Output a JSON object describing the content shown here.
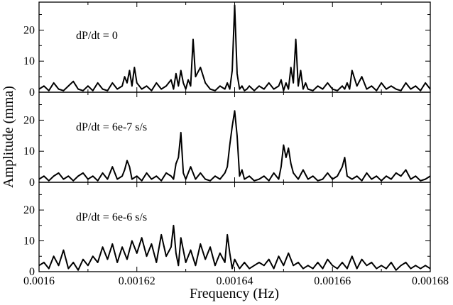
{
  "chart_data": {
    "type": "line",
    "xlabel": "Frequency (Hz)",
    "ylabel": "Amplitude (mma)",
    "xlim": [
      0.0016,
      0.00168
    ],
    "x_ticks": [
      "0.0016",
      "0.00162",
      "0.00164",
      "0.00166",
      "0.00168"
    ],
    "grid": false,
    "legend": "none",
    "panels": [
      {
        "annotation": "dP/dt = 0",
        "ylim": [
          0,
          29
        ],
        "y_ticks": [
          "0",
          "10",
          "20"
        ],
        "series": [
          {
            "x": [
              0.0016,
              0.001601,
              0.001602,
              0.001603,
              0.001604,
              0.001605,
              0.001606,
              0.001607,
              0.001608,
              0.001609,
              0.00161,
              0.001611,
              0.001612,
              0.001613,
              0.001614,
              0.001615,
              0.001616,
              0.001617,
              0.0016175,
              0.001618,
              0.0016185,
              0.001619,
              0.0016195,
              0.00162,
              0.001621,
              0.001622,
              0.001623,
              0.001624,
              0.001625,
              0.001626,
              0.001627,
              0.0016275,
              0.001628,
              0.0016285,
              0.001629,
              0.0016295,
              0.00163,
              0.0016305,
              0.001631,
              0.0016315,
              0.001632,
              0.001633,
              0.001634,
              0.001635,
              0.001636,
              0.001637,
              0.001638,
              0.0016385,
              0.001639,
              0.0016395,
              0.00164,
              0.0016405,
              0.001641,
              0.0016415,
              0.001642,
              0.0016425,
              0.001643,
              0.001644,
              0.001645,
              0.001646,
              0.001647,
              0.001648,
              0.001649,
              0.0016495,
              0.00165,
              0.0016505,
              0.001651,
              0.0016515,
              0.001652,
              0.0016525,
              0.001653,
              0.0016535,
              0.001654,
              0.0016545,
              0.001655,
              0.001656,
              0.001657,
              0.001658,
              0.001659,
              0.00166,
              0.001661,
              0.001662,
              0.0016625,
              0.001663,
              0.0016635,
              0.001664,
              0.001665,
              0.001666,
              0.001667,
              0.001668,
              0.001669,
              0.00167,
              0.001671,
              0.001672,
              0.001673,
              0.001674,
              0.001675,
              0.001676,
              0.001677,
              0.001678,
              0.001679,
              0.00168
            ],
            "y": [
              1,
              2,
              0.5,
              3,
              1,
              0.5,
              2,
              3.5,
              1,
              0.5,
              2,
              0.5,
              3,
              1,
              0.5,
              3,
              1,
              2,
              5,
              3,
              7,
              2,
              8,
              3,
              1,
              2,
              0.5,
              3,
              1,
              2,
              4,
              1,
              6,
              2,
              7,
              3,
              1,
              4,
              2,
              17,
              5,
              8,
              3,
              1,
              0.5,
              2,
              1,
              3,
              1,
              7,
              28,
              6,
              1,
              2,
              0.5,
              1,
              2,
              0.5,
              2,
              1,
              3,
              1,
              2,
              4,
              0.5,
              3,
              1,
              8,
              3,
              17,
              2,
              7,
              1,
              3,
              1,
              0.5,
              2,
              1,
              3,
              1,
              0.5,
              2,
              1,
              3,
              1,
              7,
              2,
              5,
              1,
              2,
              0.5,
              3,
              1,
              2,
              1,
              0.5,
              3,
              1,
              2,
              0.5,
              3,
              1
            ]
          }
        ]
      },
      {
        "annotation": "dP/dt = 6e-7 s/s",
        "ylim": [
          0,
          29
        ],
        "y_ticks": [
          "0",
          "10",
          "20"
        ],
        "series": [
          {
            "x": [
              0.0016,
              0.001601,
              0.001602,
              0.001603,
              0.001604,
              0.001605,
              0.001606,
              0.001607,
              0.001608,
              0.001609,
              0.00161,
              0.001611,
              0.001612,
              0.001613,
              0.001614,
              0.001615,
              0.001616,
              0.001617,
              0.0016175,
              0.001618,
              0.0016185,
              0.001619,
              0.00162,
              0.001621,
              0.001622,
              0.001623,
              0.001624,
              0.001625,
              0.001626,
              0.001627,
              0.0016275,
              0.001628,
              0.0016285,
              0.001629,
              0.0016295,
              0.00163,
              0.001631,
              0.001632,
              0.001633,
              0.001634,
              0.001635,
              0.001636,
              0.001637,
              0.001638,
              0.0016385,
              0.001639,
              0.0016395,
              0.00164,
              0.0016405,
              0.001641,
              0.0016415,
              0.001642,
              0.001643,
              0.001644,
              0.001645,
              0.001646,
              0.001647,
              0.001648,
              0.001649,
              0.0016495,
              0.00165,
              0.0016505,
              0.001651,
              0.0016515,
              0.001652,
              0.0016525,
              0.001653,
              0.001654,
              0.001655,
              0.001656,
              0.001657,
              0.001658,
              0.001659,
              0.00166,
              0.001661,
              0.001662,
              0.0016625,
              0.001663,
              0.001664,
              0.001665,
              0.001666,
              0.001667,
              0.001668,
              0.001669,
              0.00167,
              0.001671,
              0.001672,
              0.001673,
              0.001674,
              0.001675,
              0.001676,
              0.001677,
              0.001678,
              0.001679,
              0.00168
            ],
            "y": [
              1,
              2,
              0.5,
              2,
              3,
              1,
              2,
              0.5,
              2,
              3,
              1,
              2,
              0.5,
              3,
              1,
              5,
              1,
              2,
              4,
              7,
              5,
              1,
              2,
              0.5,
              3,
              1,
              2,
              0.5,
              3,
              2,
              1,
              6,
              8,
              16,
              3,
              1,
              5,
              1,
              3,
              1,
              0.5,
              2,
              1,
              3,
              5,
              12,
              18,
              23,
              15,
              2,
              4,
              1,
              2,
              0.5,
              1,
              2,
              0.5,
              3,
              1,
              5,
              12,
              8,
              11,
              6,
              3,
              2,
              1,
              4,
              1,
              2,
              0.5,
              1,
              3,
              1,
              2,
              5,
              8,
              2,
              1,
              2,
              0.5,
              3,
              1,
              2,
              0.5,
              2,
              1,
              3,
              2,
              4,
              1,
              2,
              0.5,
              1,
              2
            ]
          }
        ]
      },
      {
        "annotation": "dP/dt = 6e-6 s/s",
        "ylim": [
          0,
          29
        ],
        "y_ticks": [
          "0",
          "10",
          "20"
        ],
        "series": [
          {
            "x": [
              0.0016,
              0.001601,
              0.001602,
              0.001603,
              0.001604,
              0.001605,
              0.001606,
              0.001607,
              0.001608,
              0.001609,
              0.00161,
              0.001611,
              0.001612,
              0.001613,
              0.001614,
              0.001615,
              0.001616,
              0.001617,
              0.001618,
              0.001619,
              0.00162,
              0.001621,
              0.001622,
              0.001623,
              0.001624,
              0.001625,
              0.001626,
              0.001627,
              0.0016275,
              0.001628,
              0.0016285,
              0.001629,
              0.00163,
              0.001631,
              0.001632,
              0.001633,
              0.001634,
              0.001635,
              0.001636,
              0.001637,
              0.001638,
              0.0016385,
              0.001639,
              0.0016395,
              0.00164,
              0.001641,
              0.001642,
              0.001643,
              0.001644,
              0.001645,
              0.001646,
              0.001647,
              0.001648,
              0.001649,
              0.00165,
              0.001651,
              0.001652,
              0.001653,
              0.001654,
              0.001655,
              0.001656,
              0.001657,
              0.001658,
              0.001659,
              0.00166,
              0.001661,
              0.001662,
              0.001663,
              0.001664,
              0.001665,
              0.001666,
              0.001667,
              0.001668,
              0.001669,
              0.00167,
              0.001671,
              0.001672,
              0.001673,
              0.001674,
              0.001675,
              0.001676,
              0.001677,
              0.001678,
              0.001679,
              0.00168
            ],
            "y": [
              2,
              3,
              1,
              5,
              2,
              7,
              1,
              3,
              0.5,
              4,
              2,
              5,
              3,
              8,
              4,
              9,
              3,
              8,
              4,
              10,
              6,
              11,
              5,
              9,
              3,
              12,
              5,
              8,
              15,
              6,
              2,
              11,
              3,
              7,
              2,
              9,
              4,
              8,
              2,
              6,
              3,
              12,
              6,
              1,
              4,
              1,
              3,
              1,
              2,
              3,
              2,
              4,
              1,
              5,
              2,
              6,
              2,
              3,
              1,
              2,
              1,
              3,
              1,
              4,
              2,
              1,
              3,
              1,
              5,
              1,
              4,
              2,
              3,
              1,
              2,
              1,
              3,
              0.5,
              2,
              3,
              1,
              2,
              1,
              2,
              1
            ]
          }
        ]
      }
    ]
  }
}
